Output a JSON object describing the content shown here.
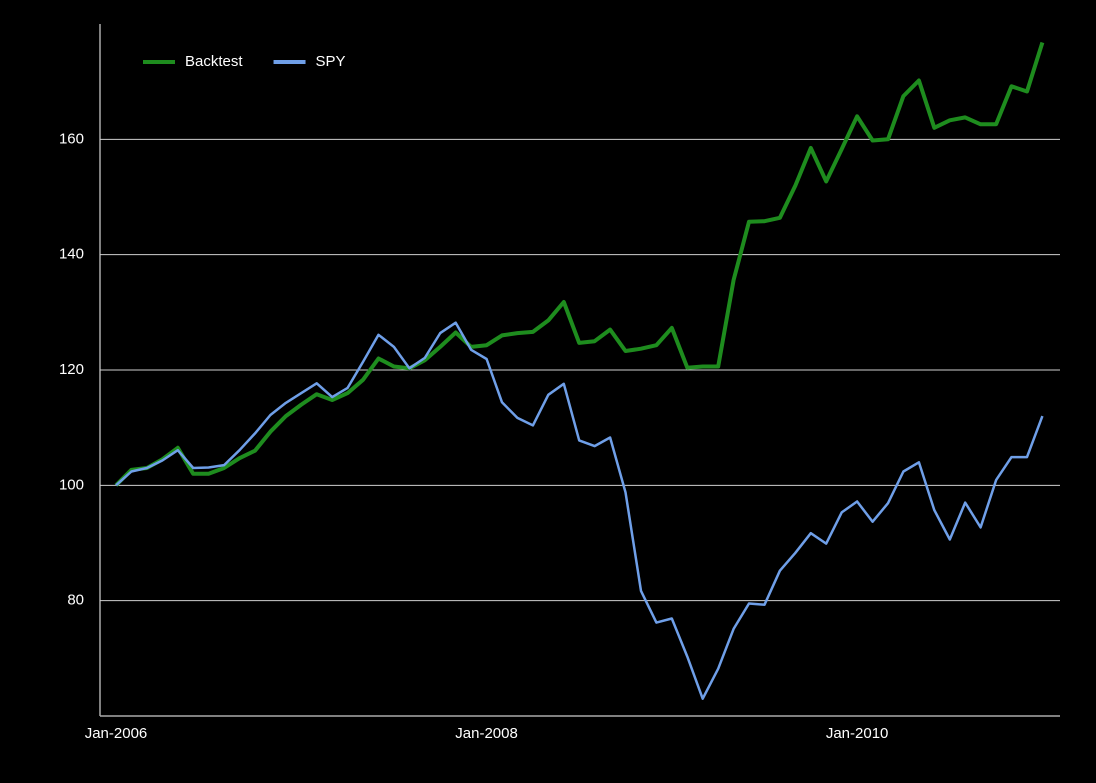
{
  "chart_data": {
    "type": "line",
    "categories": [
      "Jan-2006",
      null,
      null,
      null,
      null,
      null,
      null,
      null,
      null,
      null,
      null,
      null,
      null,
      null,
      null,
      null,
      null,
      null,
      null,
      null,
      null,
      null,
      null,
      null,
      "Jan-2008",
      null,
      null,
      null,
      null,
      null,
      null,
      null,
      null,
      null,
      null,
      null,
      null,
      null,
      null,
      null,
      null,
      null,
      null,
      null,
      null,
      null,
      null,
      null,
      "Jan-2010",
      null,
      null,
      null,
      null,
      null,
      null,
      null,
      null,
      null,
      null,
      null,
      null
    ],
    "series": [
      {
        "name": "Backtest",
        "color": "#1e8c1e",
        "values": [
          100,
          102.7,
          103,
          104.5,
          106.5,
          102,
          102,
          103,
          104.7,
          106,
          109.3,
          112,
          114,
          115.8,
          114.8,
          116,
          118.3,
          122,
          120.6,
          120.3,
          121.7,
          124,
          126.5,
          124,
          124.3,
          126,
          126.4,
          126.6,
          128.6,
          131.8,
          124.7,
          125,
          127,
          123.3,
          123.7,
          124.3,
          127.3,
          120.4,
          120.6,
          120.6,
          135.6,
          145.7,
          145.8,
          146.4,
          152,
          158.5,
          152.7,
          158.3,
          164,
          159.8,
          160,
          167.5,
          170.2,
          162,
          163.3,
          163.8,
          162.6,
          162.6,
          169.2,
          168.3,
          176.8
        ]
      },
      {
        "name": "SPY",
        "color": "#6f9fe8",
        "values": [
          100,
          102.4,
          103,
          104.3,
          106.1,
          103,
          103.1,
          103.5,
          106.1,
          109,
          112.2,
          114.3,
          116,
          117.7,
          115.3,
          116.9,
          121.4,
          126.1,
          124,
          120.3,
          122.1,
          126.4,
          128.2,
          123.5,
          121.9,
          114.4,
          111.7,
          110.4,
          115.7,
          117.6,
          107.8,
          106.8,
          108.3,
          98.8,
          81.7,
          76.2,
          76.9,
          70.3,
          63,
          68.2,
          75.1,
          79.5,
          79.3,
          85.2,
          88.3,
          91.7,
          89.9,
          95.3,
          97.2,
          93.7,
          96.9,
          102.4,
          104,
          95.7,
          90.6,
          97,
          92.7,
          100.9,
          104.9,
          104.9,
          112
        ]
      }
    ],
    "ylim": [
      60,
      180
    ],
    "yticks": [
      80,
      100,
      120,
      140,
      160
    ],
    "grid": true,
    "legend": "top-left"
  }
}
